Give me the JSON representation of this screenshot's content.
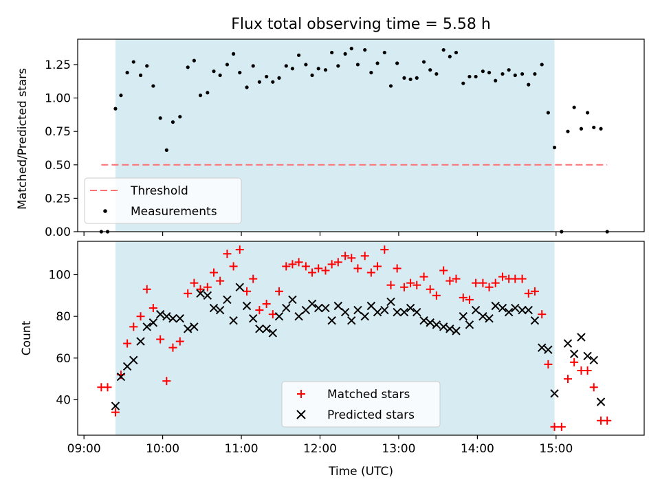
{
  "chart_data": [
    {
      "type": "scatter",
      "title": "Flux total observing time = 5.58 h",
      "xlabel": "",
      "ylabel": "Matched/Predicted stars",
      "xlim": [
        8.92,
        16.12
      ],
      "ylim": [
        0.0,
        1.44
      ],
      "yticks": [
        0.0,
        0.25,
        0.5,
        0.75,
        1.0,
        1.25
      ],
      "ytick_labels": [
        "0.00",
        "0.25",
        "0.50",
        "0.75",
        "1.00",
        "1.25"
      ],
      "shaded_span": [
        9.4,
        14.98
      ],
      "threshold": {
        "label": "Threshold",
        "value": 0.5,
        "x_range": [
          9.22,
          15.65
        ],
        "color": "#ff7070"
      },
      "legend_position": "lower left",
      "series": [
        {
          "name": "Measurements",
          "marker": "dot",
          "color": "#000000",
          "x": [
            9.22,
            9.3,
            9.4,
            9.47,
            9.55,
            9.63,
            9.72,
            9.8,
            9.88,
            9.97,
            10.05,
            10.13,
            10.22,
            10.32,
            10.4,
            10.48,
            10.57,
            10.65,
            10.73,
            10.82,
            10.9,
            10.98,
            11.07,
            11.15,
            11.23,
            11.32,
            11.4,
            11.48,
            11.57,
            11.65,
            11.73,
            11.82,
            11.9,
            11.98,
            12.07,
            12.15,
            12.23,
            12.32,
            12.4,
            12.48,
            12.57,
            12.65,
            12.73,
            12.82,
            12.9,
            12.98,
            13.07,
            13.15,
            13.23,
            13.32,
            13.4,
            13.48,
            13.57,
            13.65,
            13.73,
            13.82,
            13.9,
            13.98,
            14.07,
            14.15,
            14.23,
            14.32,
            14.4,
            14.48,
            14.57,
            14.65,
            14.73,
            14.82,
            14.9,
            14.98,
            15.07,
            15.15,
            15.23,
            15.32,
            15.4,
            15.48,
            15.57,
            15.65
          ],
          "y": [
            0.0,
            0.0,
            0.92,
            1.02,
            1.19,
            1.27,
            1.17,
            1.24,
            1.09,
            0.85,
            0.61,
            0.82,
            0.86,
            1.23,
            1.28,
            1.02,
            1.04,
            1.2,
            1.17,
            1.25,
            1.33,
            1.19,
            1.08,
            1.24,
            1.12,
            1.16,
            1.12,
            1.15,
            1.24,
            1.22,
            1.32,
            1.25,
            1.17,
            1.22,
            1.21,
            1.34,
            1.24,
            1.33,
            1.37,
            1.25,
            1.36,
            1.19,
            1.26,
            1.34,
            1.09,
            1.26,
            1.15,
            1.14,
            1.15,
            1.27,
            1.21,
            1.18,
            1.36,
            1.31,
            1.34,
            1.11,
            1.16,
            1.16,
            1.2,
            1.19,
            1.13,
            1.18,
            1.21,
            1.17,
            1.18,
            1.1,
            1.18,
            1.25,
            0.89,
            0.63,
            0.0,
            0.75,
            0.93,
            0.77,
            0.89,
            0.78,
            0.77,
            0.0
          ]
        }
      ]
    },
    {
      "type": "scatter",
      "title": "",
      "xlabel": "Time (UTC)",
      "ylabel": "Count",
      "xlim": [
        8.92,
        16.12
      ],
      "ylim": [
        23,
        116
      ],
      "yticks": [
        40,
        60,
        80,
        100
      ],
      "ytick_labels": [
        "40",
        "60",
        "80",
        "100"
      ],
      "xticks": [
        9,
        10,
        11,
        12,
        13,
        14,
        15
      ],
      "xtick_labels": [
        "09:00",
        "10:00",
        "11:00",
        "12:00",
        "13:00",
        "14:00",
        "15:00"
      ],
      "shaded_span": [
        9.4,
        14.98
      ],
      "legend_position": "lower center",
      "series": [
        {
          "name": "Matched stars",
          "marker": "plus",
          "color": "#ff0000",
          "x": [
            9.22,
            9.3,
            9.4,
            9.47,
            9.55,
            9.63,
            9.72,
            9.8,
            9.88,
            9.97,
            10.05,
            10.13,
            10.22,
            10.32,
            10.4,
            10.48,
            10.57,
            10.65,
            10.73,
            10.82,
            10.9,
            10.98,
            11.07,
            11.15,
            11.23,
            11.32,
            11.4,
            11.48,
            11.57,
            11.65,
            11.73,
            11.82,
            11.9,
            11.98,
            12.07,
            12.15,
            12.23,
            12.32,
            12.4,
            12.48,
            12.57,
            12.65,
            12.73,
            12.82,
            12.9,
            12.98,
            13.07,
            13.15,
            13.23,
            13.32,
            13.4,
            13.48,
            13.57,
            13.65,
            13.73,
            13.82,
            13.9,
            13.98,
            14.07,
            14.15,
            14.23,
            14.32,
            14.4,
            14.48,
            14.57,
            14.65,
            14.73,
            14.82,
            14.9,
            14.98,
            15.07,
            15.15,
            15.23,
            15.32,
            15.4,
            15.48,
            15.57,
            15.65
          ],
          "y": [
            46,
            46,
            34,
            52,
            67,
            75,
            80,
            93,
            84,
            69,
            49,
            65,
            68,
            91,
            96,
            93,
            94,
            101,
            97,
            110,
            104,
            112,
            92,
            98,
            83,
            86,
            81,
            92,
            104,
            105,
            106,
            104,
            101,
            103,
            102,
            105,
            106,
            109,
            108,
            103,
            109,
            101,
            104,
            112,
            95,
            103,
            94,
            96,
            95,
            99,
            93,
            90,
            102,
            97,
            98,
            89,
            88,
            96,
            96,
            94,
            96,
            99,
            98,
            98,
            98,
            91,
            92,
            81,
            57,
            27,
            27,
            50,
            58,
            54,
            54,
            46,
            30,
            30
          ]
        },
        {
          "name": "Predicted stars",
          "marker": "x",
          "color": "#000000",
          "x": [
            9.4,
            9.47,
            9.55,
            9.63,
            9.72,
            9.8,
            9.88,
            9.97,
            10.05,
            10.13,
            10.22,
            10.32,
            10.4,
            10.48,
            10.57,
            10.65,
            10.73,
            10.82,
            10.9,
            10.98,
            11.07,
            11.15,
            11.23,
            11.32,
            11.4,
            11.48,
            11.57,
            11.65,
            11.73,
            11.82,
            11.9,
            11.98,
            12.07,
            12.15,
            12.23,
            12.32,
            12.4,
            12.48,
            12.57,
            12.65,
            12.73,
            12.82,
            12.9,
            12.98,
            13.07,
            13.15,
            13.23,
            13.32,
            13.4,
            13.48,
            13.57,
            13.65,
            13.73,
            13.82,
            13.9,
            13.98,
            14.07,
            14.15,
            14.23,
            14.32,
            14.4,
            14.48,
            14.57,
            14.65,
            14.73,
            14.82,
            14.9,
            14.98,
            15.15,
            15.23,
            15.32,
            15.4,
            15.48,
            15.57
          ],
          "y": [
            37,
            51,
            56,
            59,
            68,
            75,
            77,
            81,
            80,
            79,
            79,
            74,
            75,
            91,
            90,
            84,
            83,
            88,
            78,
            94,
            85,
            79,
            74,
            74,
            72,
            80,
            84,
            88,
            80,
            83,
            86,
            84,
            84,
            78,
            85,
            82,
            78,
            83,
            80,
            85,
            82,
            83,
            87,
            82,
            82,
            84,
            82,
            78,
            77,
            76,
            75,
            74,
            73,
            80,
            76,
            83,
            80,
            79,
            85,
            84,
            82,
            84,
            83,
            83,
            78,
            65,
            64,
            43,
            67,
            62,
            70,
            61,
            59,
            39
          ]
        }
      ]
    }
  ]
}
